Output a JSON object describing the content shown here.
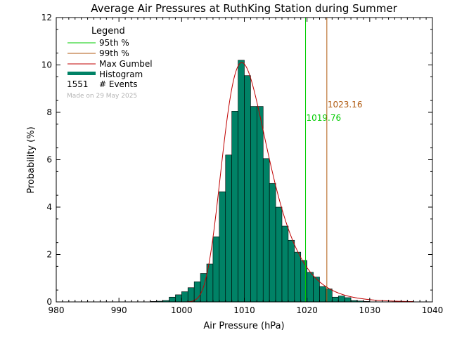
{
  "chart_data": {
    "type": "bar",
    "title": "Average Air Pressures at RuthKing Station during Summer",
    "xlabel": "Air Pressure (hPa)",
    "ylabel": "Probability (%)",
    "xlim": [
      980,
      1040
    ],
    "ylim": [
      0,
      12
    ],
    "xticks": [
      "980",
      "990",
      "1000",
      "1010",
      "1020",
      "1030",
      "1040"
    ],
    "yticks": [
      "0",
      "2",
      "4",
      "6",
      "8",
      "10",
      "12"
    ],
    "bin_width": 1,
    "histogram": {
      "name": "Histogram",
      "bin_starts": [
        994,
        995,
        996,
        997,
        998,
        999,
        1000,
        1001,
        1002,
        1003,
        1004,
        1005,
        1006,
        1007,
        1008,
        1009,
        1010,
        1011,
        1012,
        1013,
        1014,
        1015,
        1016,
        1017,
        1018,
        1019,
        1020,
        1021,
        1022,
        1023,
        1024,
        1025,
        1026,
        1027,
        1028,
        1029
      ],
      "values": [
        0.0,
        0.02,
        0.03,
        0.06,
        0.2,
        0.3,
        0.43,
        0.6,
        0.85,
        1.2,
        1.6,
        2.75,
        4.65,
        6.2,
        8.05,
        10.2,
        9.55,
        8.25,
        8.25,
        6.05,
        5.0,
        4.0,
        3.2,
        2.6,
        2.1,
        1.75,
        1.25,
        1.05,
        0.65,
        0.55,
        0.2,
        0.25,
        0.18,
        0.06,
        0.04,
        0.02
      ],
      "color": "#008266"
    },
    "gumbel": {
      "name": "Max Gumbel",
      "mode": 1009.6,
      "scale": 3.6,
      "peak": 10.1,
      "color": "#c00000"
    },
    "lines": [
      {
        "name": "95th %",
        "x": 1019.76,
        "label": "1019.76",
        "color": "#00cc00"
      },
      {
        "name": "99th %",
        "x": 1023.16,
        "label": "1023.16",
        "color": "#b05a10"
      }
    ],
    "legend": {
      "title": "Legend",
      "items": [
        "95th %",
        "99th %",
        "Max Gumbel",
        "Histogram"
      ],
      "events_count": "1551",
      "events_label": "# Events",
      "made_on": "Made on 29 May 2025",
      "placement": "top-left"
    }
  }
}
